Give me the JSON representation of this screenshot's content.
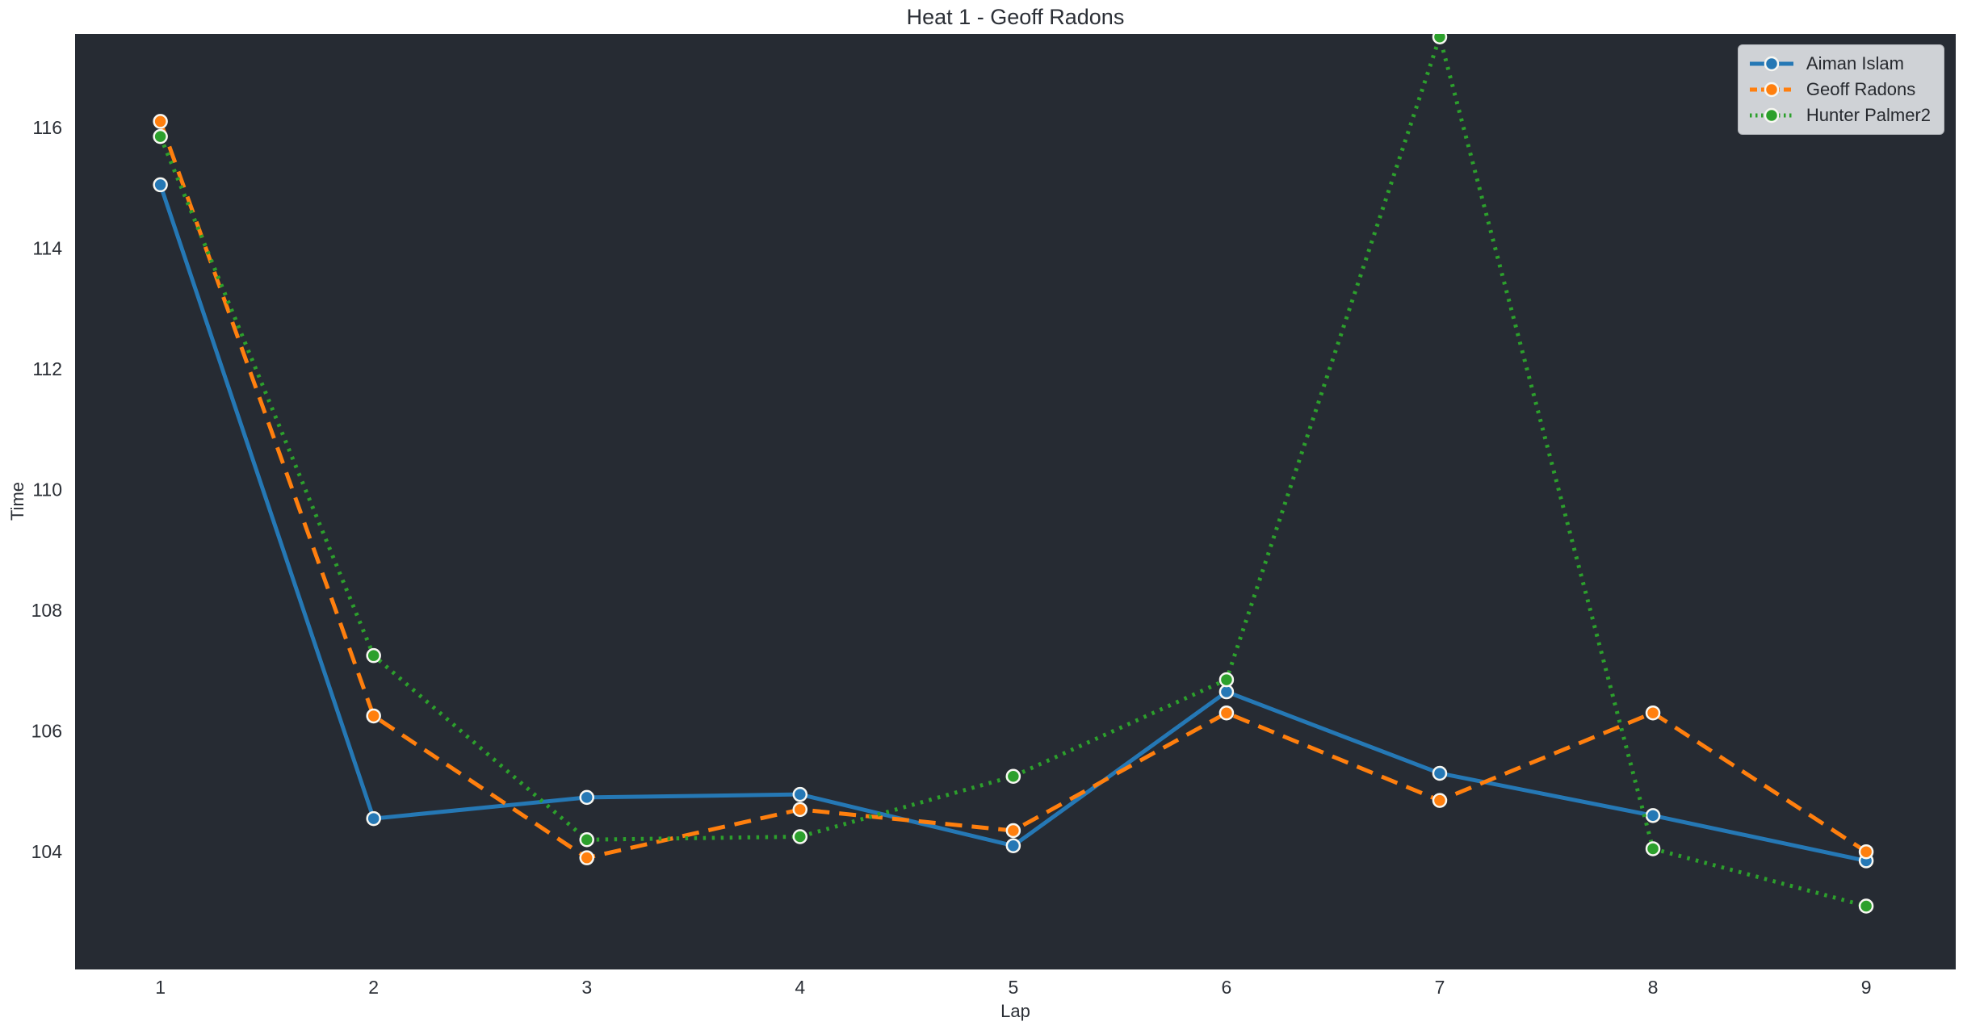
{
  "chart_data": {
    "type": "line",
    "title": "Heat 1 - Geoff Radons",
    "xlabel": "Lap",
    "ylabel": "Time",
    "x": [
      1,
      2,
      3,
      4,
      5,
      6,
      7,
      8,
      9
    ],
    "xticks": [
      "1",
      "2",
      "3",
      "4",
      "5",
      "6",
      "7",
      "8",
      "9"
    ],
    "yticks": [
      104,
      106,
      108,
      110,
      112,
      114,
      116
    ],
    "xlim": [
      0.6,
      9.42
    ],
    "ylim": [
      102.05,
      117.55
    ],
    "grid": false,
    "legend_position": "upper right",
    "series": [
      {
        "name": "Aiman Islam",
        "color": "#2578b5",
        "style": "solid",
        "marker": "circle",
        "values": [
          115.05,
          104.55,
          104.9,
          104.95,
          104.1,
          106.65,
          105.3,
          104.6,
          103.85
        ]
      },
      {
        "name": "Geoff Radons",
        "color": "#ff7f0e",
        "style": "dashed",
        "marker": "circle",
        "values": [
          116.1,
          106.25,
          103.9,
          104.7,
          104.35,
          106.3,
          104.85,
          106.3,
          104.0
        ]
      },
      {
        "name": "Hunter Palmer2",
        "color": "#2ca02c",
        "style": "dotted",
        "marker": "circle",
        "values": [
          115.85,
          107.25,
          104.2,
          104.25,
          105.25,
          106.85,
          117.5,
          104.05,
          103.1
        ]
      }
    ],
    "colors": {
      "figure_bg": "#ffffff",
      "axes_bg": "#262b33",
      "text": "#2b2f36",
      "legend_bg": "#cfd2d6",
      "marker_edge": "#f7f7f2"
    }
  }
}
